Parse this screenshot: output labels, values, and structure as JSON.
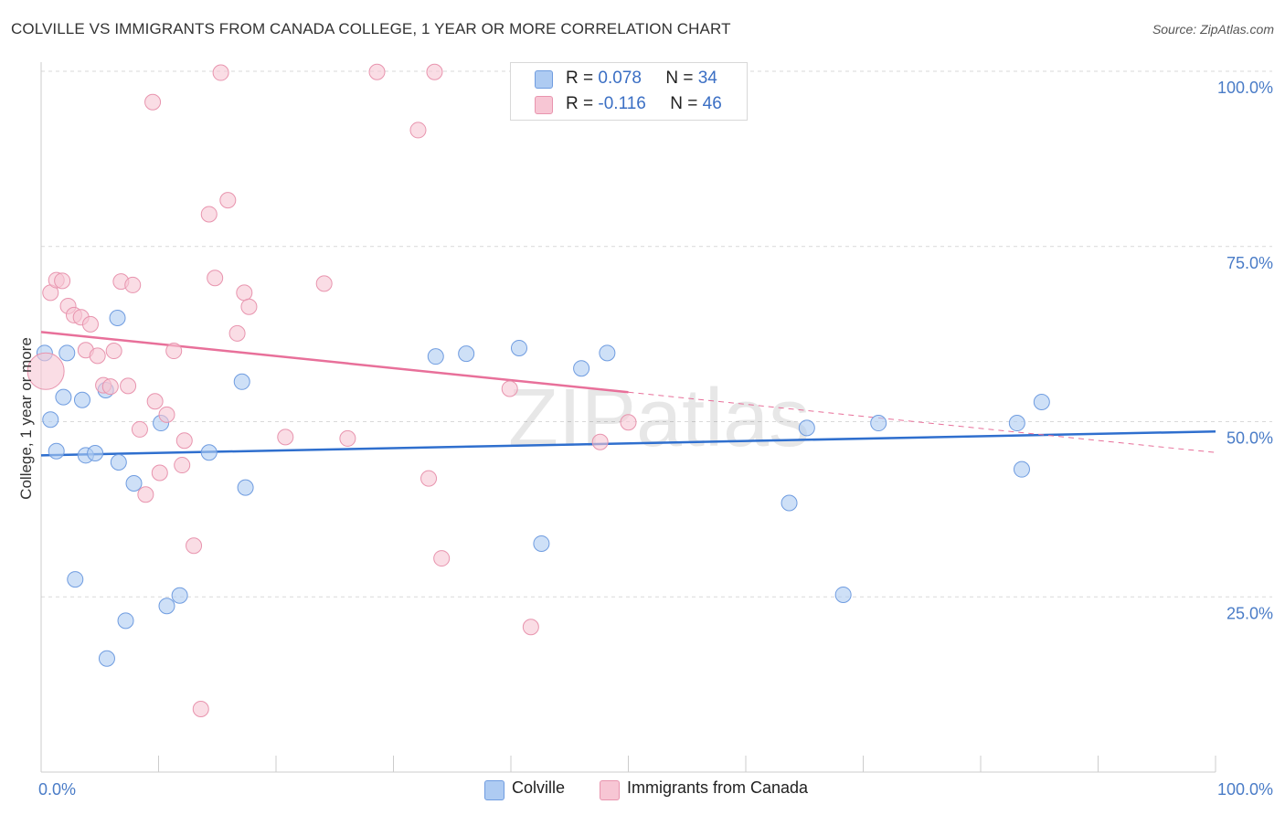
{
  "header": {
    "title": "COLVILLE VS IMMIGRANTS FROM CANADA COLLEGE, 1 YEAR OR MORE CORRELATION CHART",
    "source": "Source: ZipAtlas.com"
  },
  "legend": {
    "r_label": "R =",
    "n_label": "N =",
    "series": [
      {
        "r": "0.078",
        "n": "34",
        "color": "#aecbf2",
        "border": "#6f9ce0"
      },
      {
        "r": "-0.116",
        "n": "46",
        "color": "#f7c6d4",
        "border": "#e894ae"
      }
    ]
  },
  "chart_data": {
    "type": "scatter",
    "title": "COLVILLE VS IMMIGRANTS FROM CANADA COLLEGE, 1 YEAR OR MORE CORRELATION CHART",
    "xlabel": "",
    "ylabel": "College, 1 year or more",
    "xlim": [
      0,
      100
    ],
    "ylim": [
      0,
      100
    ],
    "x_tick_labels": [
      "0.0%",
      "100.0%"
    ],
    "y_ticks": [
      25,
      50,
      75,
      100
    ],
    "y_tick_labels": [
      "25.0%",
      "50.0%",
      "75.0%",
      "100.0%"
    ],
    "watermark": "ZIPatlas",
    "series": [
      {
        "name": "Colville",
        "color": "#aecbf2",
        "stroke": "#6f9ce0",
        "line_color": "#2f6fce",
        "trend": {
          "x0": 0,
          "y0": 45.2,
          "x1": 100,
          "y1": 48.6,
          "dashed_from": null
        },
        "points": [
          {
            "x": 0.3,
            "y": 59.8
          },
          {
            "x": 0.8,
            "y": 50.3
          },
          {
            "x": 1.3,
            "y": 45.8
          },
          {
            "x": 1.9,
            "y": 53.5
          },
          {
            "x": 2.2,
            "y": 59.8
          },
          {
            "x": 2.9,
            "y": 27.5
          },
          {
            "x": 3.5,
            "y": 53.1
          },
          {
            "x": 3.8,
            "y": 45.2
          },
          {
            "x": 4.6,
            "y": 45.5
          },
          {
            "x": 5.6,
            "y": 16.2
          },
          {
            "x": 5.5,
            "y": 54.5
          },
          {
            "x": 6.5,
            "y": 64.8
          },
          {
            "x": 6.6,
            "y": 44.2
          },
          {
            "x": 7.2,
            "y": 21.6
          },
          {
            "x": 7.9,
            "y": 41.2
          },
          {
            "x": 10.2,
            "y": 49.8
          },
          {
            "x": 10.7,
            "y": 23.7
          },
          {
            "x": 11.8,
            "y": 25.2
          },
          {
            "x": 14.3,
            "y": 45.6
          },
          {
            "x": 17.1,
            "y": 55.7
          },
          {
            "x": 17.4,
            "y": 40.6
          },
          {
            "x": 33.6,
            "y": 59.3
          },
          {
            "x": 36.2,
            "y": 59.7
          },
          {
            "x": 40.7,
            "y": 60.5
          },
          {
            "x": 42.6,
            "y": 32.6
          },
          {
            "x": 46.0,
            "y": 57.6
          },
          {
            "x": 48.2,
            "y": 59.8
          },
          {
            "x": 63.7,
            "y": 38.4
          },
          {
            "x": 65.2,
            "y": 49.1
          },
          {
            "x": 68.3,
            "y": 25.3
          },
          {
            "x": 71.3,
            "y": 49.8
          },
          {
            "x": 83.5,
            "y": 43.2
          },
          {
            "x": 83.1,
            "y": 49.8
          },
          {
            "x": 85.2,
            "y": 52.8
          }
        ]
      },
      {
        "name": "Immigrants from Canada",
        "color": "#f7c6d4",
        "stroke": "#e894ae",
        "line_color": "#e8709a",
        "trend": {
          "x0": 0,
          "y0": 62.8,
          "x1": 100,
          "y1": 45.6,
          "dashed_from": 50
        },
        "points": [
          {
            "x": 0.4,
            "y": 57.2,
            "r": 20
          },
          {
            "x": 0.8,
            "y": 68.4
          },
          {
            "x": 1.3,
            "y": 70.2
          },
          {
            "x": 1.8,
            "y": 70.1
          },
          {
            "x": 2.3,
            "y": 66.5
          },
          {
            "x": 2.8,
            "y": 65.2
          },
          {
            "x": 3.4,
            "y": 64.9
          },
          {
            "x": 4.2,
            "y": 63.9
          },
          {
            "x": 3.8,
            "y": 60.2
          },
          {
            "x": 4.8,
            "y": 59.4
          },
          {
            "x": 5.3,
            "y": 55.2
          },
          {
            "x": 6.2,
            "y": 60.1
          },
          {
            "x": 5.9,
            "y": 55.0
          },
          {
            "x": 6.8,
            "y": 70.0
          },
          {
            "x": 7.4,
            "y": 55.1
          },
          {
            "x": 7.8,
            "y": 69.5
          },
          {
            "x": 8.4,
            "y": 48.9
          },
          {
            "x": 8.9,
            "y": 39.6
          },
          {
            "x": 9.5,
            "y": 95.6
          },
          {
            "x": 9.7,
            "y": 52.9
          },
          {
            "x": 10.1,
            "y": 42.7
          },
          {
            "x": 10.7,
            "y": 51.0
          },
          {
            "x": 11.3,
            "y": 60.1
          },
          {
            "x": 12.0,
            "y": 43.8
          },
          {
            "x": 12.2,
            "y": 47.3
          },
          {
            "x": 13.0,
            "y": 32.3
          },
          {
            "x": 13.6,
            "y": 9.0
          },
          {
            "x": 14.3,
            "y": 79.6
          },
          {
            "x": 14.8,
            "y": 70.5
          },
          {
            "x": 15.3,
            "y": 99.8
          },
          {
            "x": 15.9,
            "y": 81.6
          },
          {
            "x": 16.7,
            "y": 62.6
          },
          {
            "x": 17.3,
            "y": 68.4
          },
          {
            "x": 17.7,
            "y": 66.4
          },
          {
            "x": 20.8,
            "y": 47.8
          },
          {
            "x": 24.1,
            "y": 69.7
          },
          {
            "x": 26.1,
            "y": 47.6
          },
          {
            "x": 28.6,
            "y": 99.9
          },
          {
            "x": 32.1,
            "y": 91.6
          },
          {
            "x": 33.0,
            "y": 41.9
          },
          {
            "x": 33.5,
            "y": 99.9
          },
          {
            "x": 34.1,
            "y": 30.5
          },
          {
            "x": 39.9,
            "y": 54.7
          },
          {
            "x": 41.7,
            "y": 20.7
          },
          {
            "x": 47.6,
            "y": 47.1
          },
          {
            "x": 50.0,
            "y": 49.9
          }
        ]
      }
    ]
  },
  "bottom_legend": {
    "items": [
      {
        "label": "Colville",
        "color": "#aecbf2",
        "border": "#6f9ce0"
      },
      {
        "label": "Immigrants from Canada",
        "color": "#f7c6d4",
        "border": "#e894ae"
      }
    ]
  }
}
